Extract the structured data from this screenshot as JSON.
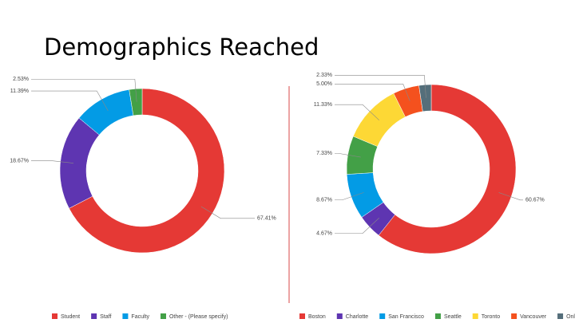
{
  "title": "Demographics Reached",
  "chart_data": [
    {
      "type": "pie",
      "donut": true,
      "categories": [
        "Student",
        "Staff",
        "Faculty",
        "Other - (Please specify)"
      ],
      "values": [
        67.41,
        18.67,
        11.39,
        2.53
      ],
      "value_labels": [
        "67.41%",
        "18.67%",
        "11.39%",
        "2.53%"
      ],
      "colors": [
        "#e53935",
        "#5e35b1",
        "#039be5",
        "#43a047"
      ]
    },
    {
      "type": "pie",
      "donut": true,
      "categories": [
        "Boston",
        "Charlotte",
        "San Francisco",
        "Seattle",
        "Toronto",
        "Vancouver",
        "Online"
      ],
      "values": [
        60.67,
        4.67,
        8.67,
        7.33,
        11.33,
        5.0,
        2.33
      ],
      "value_labels": [
        "60.67%",
        "4.67%",
        "8.67%",
        "7.33%",
        "11.33%",
        "5.00%",
        "2.33%"
      ],
      "colors": [
        "#e53935",
        "#5e35b1",
        "#039be5",
        "#43a047",
        "#fdd835",
        "#f4511e",
        "#546e7a"
      ]
    }
  ]
}
